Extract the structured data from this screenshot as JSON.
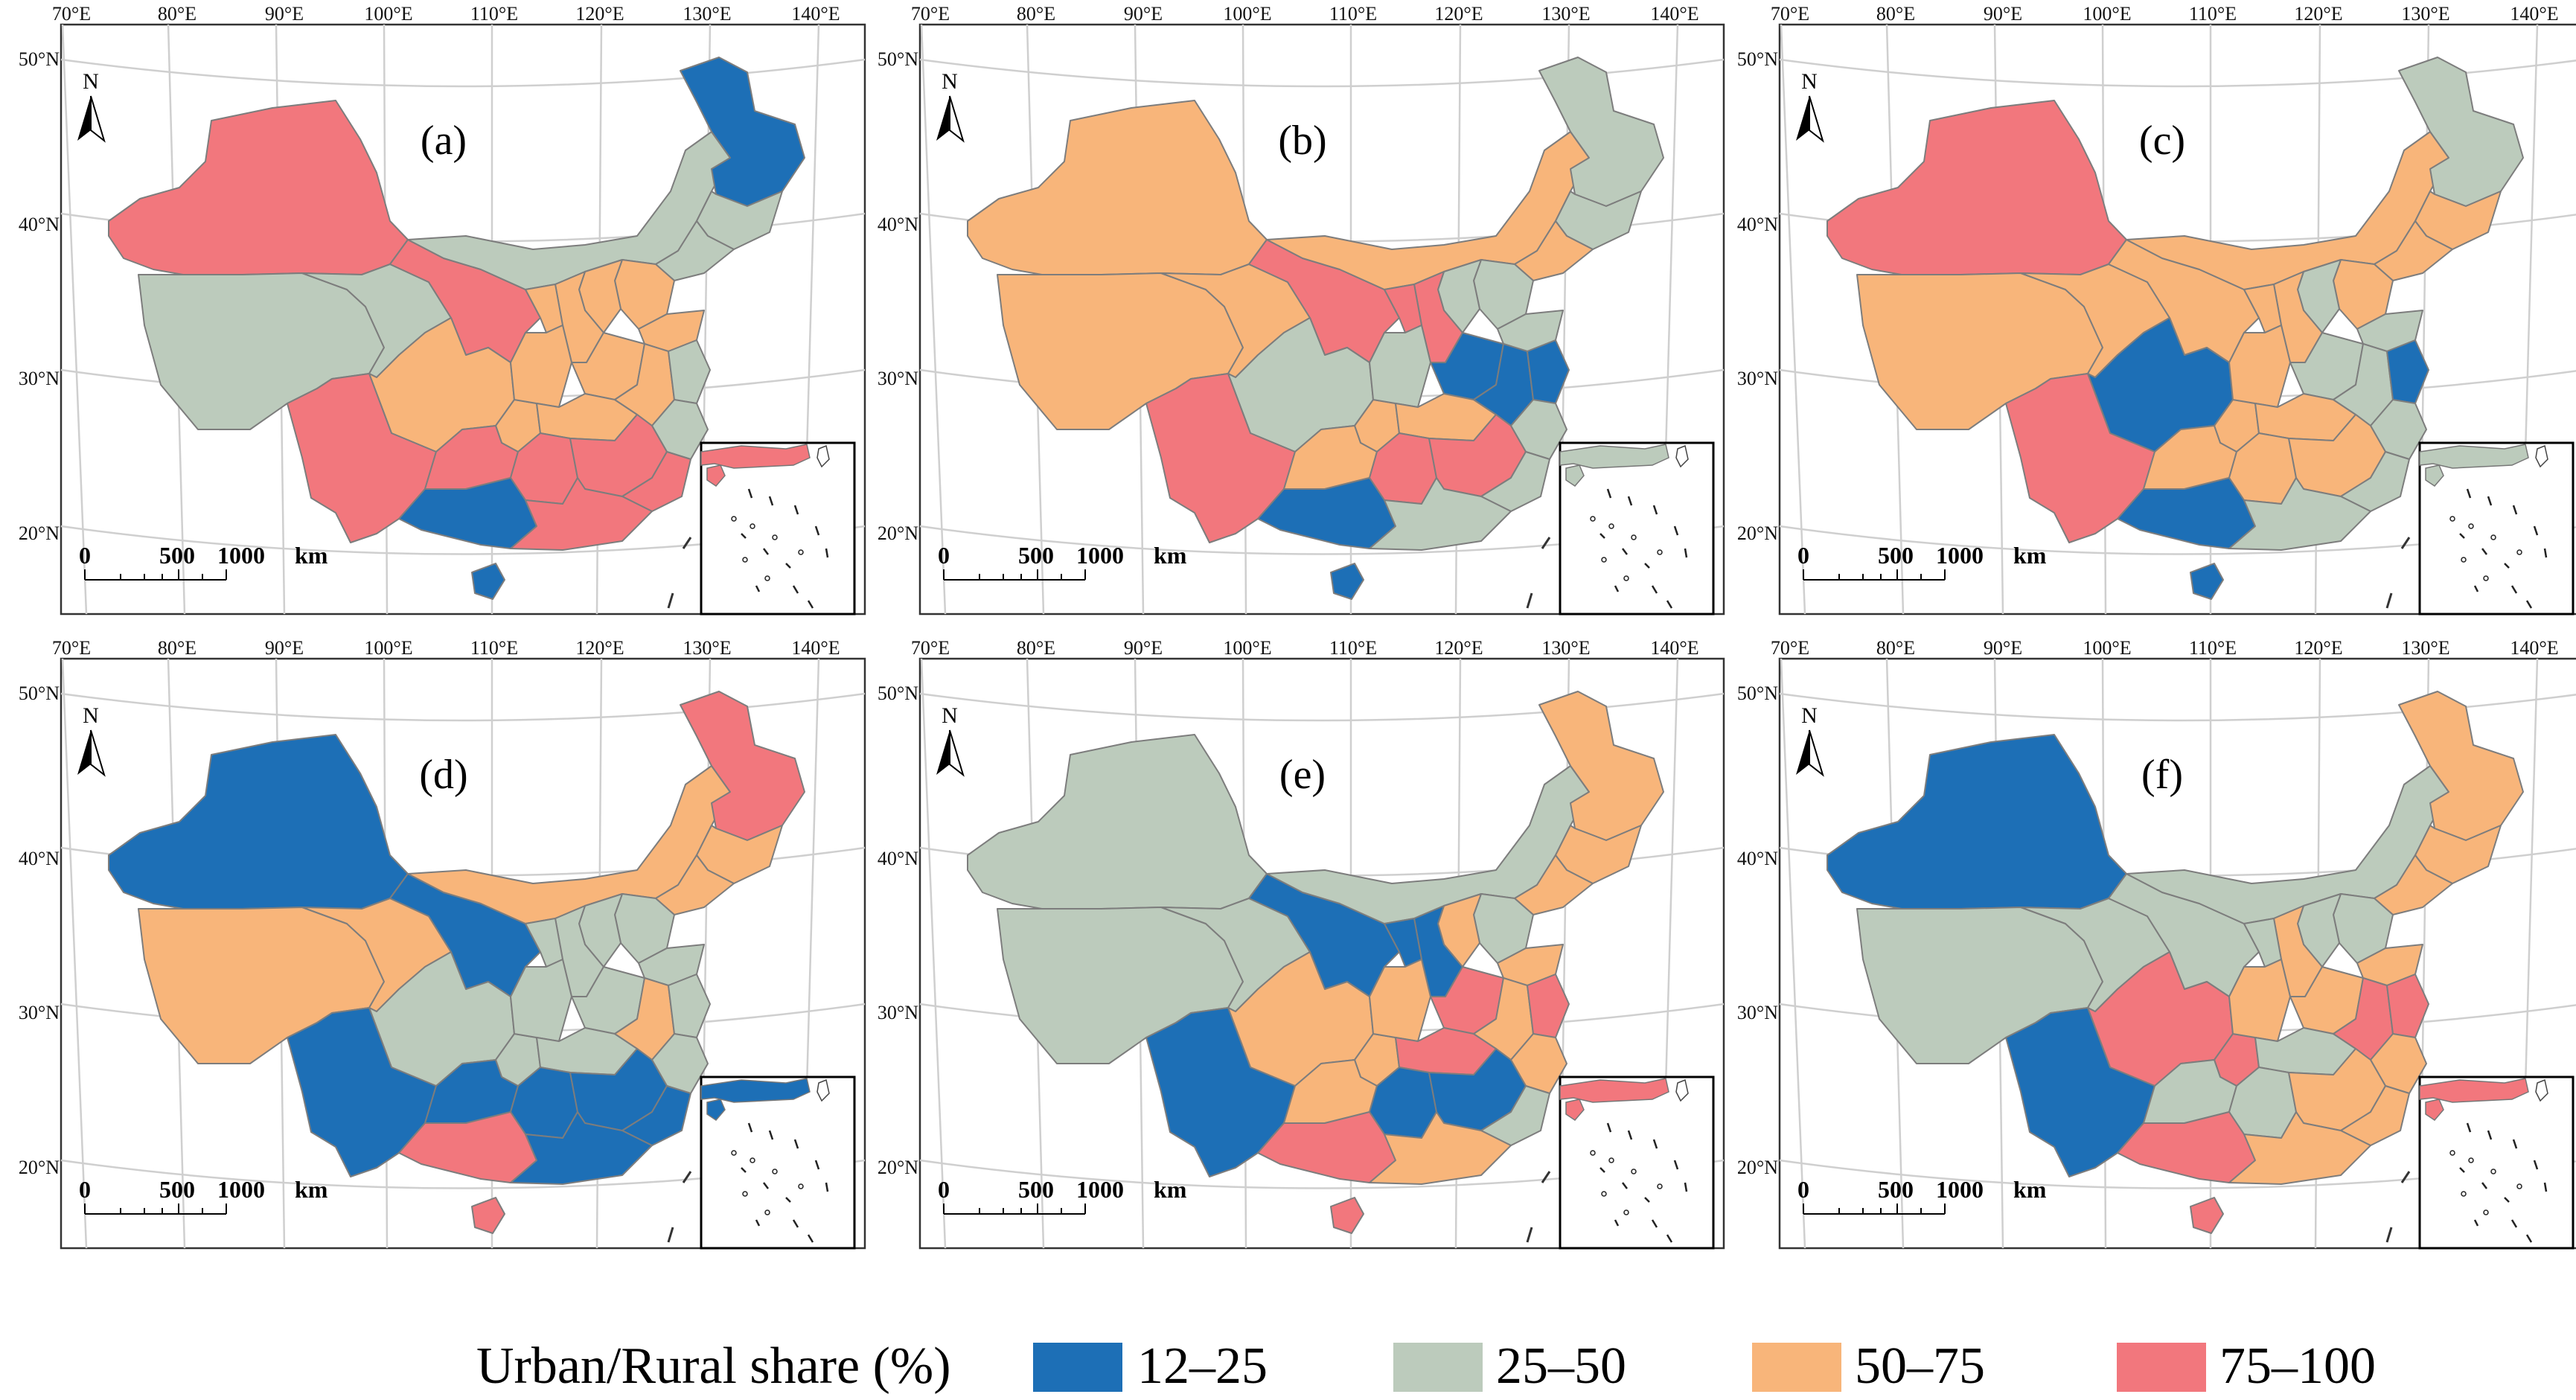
{
  "colors": {
    "c1": "#1d6fb6",
    "c2": "#bccbbc",
    "c3": "#f8b57a",
    "c4": "#f2777d"
  },
  "axis": {
    "lon": [
      "70°E",
      "80°E",
      "90°E",
      "100°E",
      "110°E",
      "120°E",
      "130°E",
      "140°E"
    ],
    "lat": [
      "50°N",
      "40°N",
      "30°N",
      "20°N"
    ]
  },
  "compass": {
    "letter": "N"
  },
  "scalebar": {
    "t0": "0",
    "t1": "500",
    "t2": "1000",
    "unit": "km"
  },
  "legend": {
    "title": "Urban/Rural share (%)",
    "items": [
      {
        "label": "12–25",
        "cls": "c1"
      },
      {
        "label": "25–50",
        "cls": "c2"
      },
      {
        "label": "50–75",
        "cls": "c3"
      },
      {
        "label": "75–100",
        "cls": "c4"
      }
    ]
  },
  "panels": [
    {
      "label": "(a)",
      "regions": {
        "xj": "c4",
        "tibet": "c2",
        "qh": "c2",
        "gs": "c4",
        "nm": "c2",
        "hlj": "c1",
        "jl": "c2",
        "ln": "c2",
        "bj": "c3",
        "hb": "c3",
        "sd": "c3",
        "sx": "c3",
        "nx": "c3",
        "sc": "c3",
        "cq": "c3",
        "sn": "c3",
        "hen": "c3",
        "hub": "c3",
        "ah": "c3",
        "js": "c2",
        "zj": "c2",
        "yn": "c4",
        "gz": "c4",
        "hun": "c4",
        "jx": "c4",
        "fj": "c4",
        "gx": "c1",
        "gd": "c4",
        "hi": "c1"
      },
      "inset": "c4"
    },
    {
      "label": "(b)",
      "regions": {
        "xj": "c3",
        "tibet": "c3",
        "qh": "c3",
        "gs": "c4",
        "nm": "c3",
        "hlj": "c2",
        "jl": "c2",
        "ln": "c3",
        "bj": "c2",
        "hb": "c2",
        "sd": "c2",
        "sx": "c4",
        "nx": "c4",
        "sc": "c2",
        "cq": "c3",
        "sn": "c2",
        "hen": "c1",
        "hub": "c3",
        "ah": "c1",
        "js": "c1",
        "zj": "c2",
        "yn": "c4",
        "gz": "c3",
        "hun": "c4",
        "jx": "c4",
        "fj": "c2",
        "gx": "c1",
        "gd": "c2",
        "hi": "c1"
      },
      "inset": "c2"
    },
    {
      "label": "(c)",
      "regions": {
        "xj": "c4",
        "tibet": "c3",
        "qh": "c3",
        "gs": "c3",
        "nm": "c3",
        "hlj": "c2",
        "jl": "c3",
        "ln": "c3",
        "bj": "c3",
        "hb": "c2",
        "sd": "c2",
        "sx": "c3",
        "nx": "c3",
        "sc": "c1",
        "cq": "c3",
        "sn": "c3",
        "hen": "c2",
        "hub": "c3",
        "ah": "c2",
        "js": "c1",
        "zj": "c2",
        "yn": "c4",
        "gz": "c3",
        "hun": "c3",
        "jx": "c3",
        "fj": "c2",
        "gx": "c1",
        "gd": "c2",
        "hi": "c1"
      },
      "inset": "c2"
    },
    {
      "label": "(d)",
      "regions": {
        "xj": "c1",
        "tibet": "c3",
        "qh": "c3",
        "gs": "c1",
        "nm": "c3",
        "hlj": "c4",
        "jl": "c3",
        "ln": "c3",
        "bj": "c2",
        "hb": "c2",
        "sd": "c2",
        "sx": "c2",
        "nx": "c2",
        "sc": "c2",
        "cq": "c2",
        "sn": "c2",
        "hen": "c2",
        "hub": "c2",
        "ah": "c3",
        "js": "c2",
        "zj": "c2",
        "yn": "c1",
        "gz": "c1",
        "hun": "c1",
        "jx": "c1",
        "fj": "c1",
        "gx": "c4",
        "gd": "c1",
        "hi": "c4"
      },
      "inset": "c1"
    },
    {
      "label": "(e)",
      "regions": {
        "xj": "c2",
        "tibet": "c2",
        "qh": "c2",
        "gs": "c1",
        "nm": "c2",
        "hlj": "c3",
        "jl": "c3",
        "ln": "c3",
        "bj": "c2",
        "hb": "c3",
        "sd": "c3",
        "sx": "c1",
        "nx": "c1",
        "sc": "c3",
        "cq": "c3",
        "sn": "c3",
        "hen": "c4",
        "hub": "c4",
        "ah": "c3",
        "js": "c4",
        "zj": "c3",
        "yn": "c1",
        "gz": "c3",
        "hun": "c1",
        "jx": "c1",
        "fj": "c2",
        "gx": "c4",
        "gd": "c3",
        "hi": "c4"
      },
      "inset": "c4"
    },
    {
      "label": "(f)",
      "regions": {
        "xj": "c1",
        "tibet": "c2",
        "qh": "c2",
        "gs": "c2",
        "nm": "c2",
        "hlj": "c3",
        "jl": "c3",
        "ln": "c3",
        "bj": "c2",
        "hb": "c2",
        "sd": "c3",
        "sx": "c3",
        "nx": "c2",
        "sc": "c4",
        "cq": "c4",
        "sn": "c3",
        "hen": "c3",
        "hub": "c2",
        "ah": "c4",
        "js": "c4",
        "zj": "c3",
        "yn": "c1",
        "gz": "c2",
        "hun": "c2",
        "jx": "c3",
        "fj": "c3",
        "gx": "c4",
        "gd": "c3",
        "hi": "c4"
      },
      "inset": "c4"
    }
  ]
}
